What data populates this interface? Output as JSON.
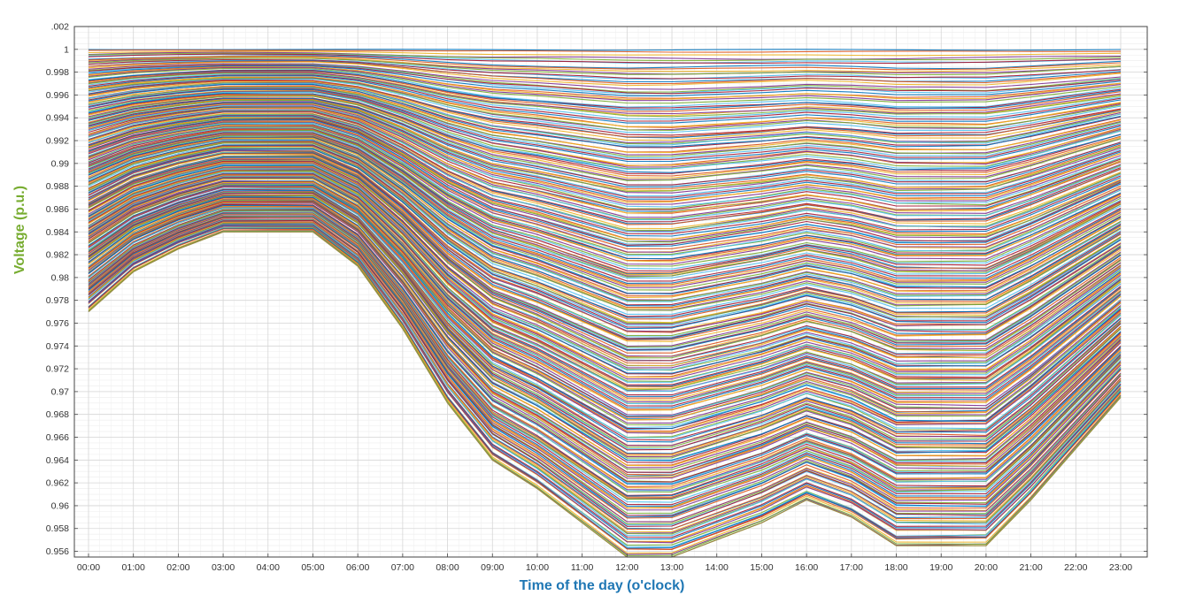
{
  "chart_data": {
    "type": "line",
    "title": "",
    "xlabel": "Time of the day (o'clock)",
    "ylabel": "Voltage (p.u.)",
    "xlabel_color": "#1f77b4",
    "ylabel_color": "#77ac30",
    "x": [
      "00:00",
      "01:00",
      "02:00",
      "03:00",
      "04:00",
      "05:00",
      "06:00",
      "07:00",
      "08:00",
      "09:00",
      "10:00",
      "11:00",
      "12:00",
      "13:00",
      "14:00",
      "15:00",
      "16:00",
      "17:00",
      "18:00",
      "19:00",
      "20:00",
      "21:00",
      "22:00",
      "23:00"
    ],
    "ylim": [
      0.9555,
      1.002
    ],
    "yticks": [
      ".002",
      "1",
      "0.998",
      "0.996",
      "0.994",
      "0.992",
      "0.99",
      "0.988",
      "0.986",
      "0.984",
      "0.982",
      "0.98",
      "0.978",
      "0.976",
      "0.974",
      "0.972",
      "0.97",
      "0.968",
      "0.966",
      "0.964",
      "0.962",
      "0.96",
      "0.958",
      "0.956"
    ],
    "ytick_values": [
      1.002,
      1.0,
      0.998,
      0.996,
      0.994,
      0.992,
      0.99,
      0.988,
      0.986,
      0.984,
      0.982,
      0.98,
      0.978,
      0.976,
      0.974,
      0.972,
      0.97,
      0.968,
      0.966,
      0.964,
      0.962,
      0.96,
      0.958,
      0.956
    ],
    "grid": true,
    "legend": "none",
    "series_count": 300,
    "series_colors": [
      "#0072bd",
      "#d95319",
      "#edb120",
      "#7e2f8e",
      "#77ac30",
      "#4dbeee",
      "#a2142f"
    ],
    "envelope": {
      "upper": [
        1.0,
        1.0,
        1.0,
        1.0,
        1.0,
        1.0,
        1.0,
        1.0,
        1.0,
        1.0,
        1.0,
        1.0,
        1.0,
        1.0,
        1.0,
        1.0,
        1.0,
        1.0,
        1.0,
        1.0,
        1.0,
        1.0,
        1.0,
        1.0
      ],
      "lower": [
        0.977,
        0.9805,
        0.9825,
        0.984,
        0.984,
        0.984,
        0.981,
        0.9755,
        0.969,
        0.964,
        0.9615,
        0.9585,
        0.9555,
        0.9555,
        0.957,
        0.9585,
        0.9605,
        0.959,
        0.9565,
        0.9565,
        0.9565,
        0.9605,
        0.965,
        0.9695
      ]
    }
  }
}
